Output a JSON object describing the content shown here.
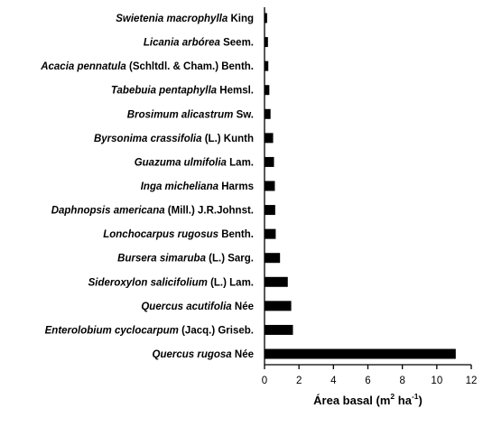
{
  "chart_data": {
    "type": "bar",
    "orientation": "horizontal",
    "categories": [
      {
        "italic": "Swietenia macrophylla",
        "author": " King",
        "value": 0.15
      },
      {
        "italic": "Licania arbórea",
        "author": " Seem.",
        "value": 0.2
      },
      {
        "italic": "Acacia pennatula",
        "author": " (Schltdl. & Cham.) Benth.",
        "value": 0.22
      },
      {
        "italic": "Tabebuia pentaphylla",
        "author": " Hemsl.",
        "value": 0.28
      },
      {
        "italic": "Brosimum alicastrum",
        "author": " Sw.",
        "value": 0.35
      },
      {
        "italic": "Byrsonima crassifolia",
        "author": " (L.) Kunth",
        "value": 0.5
      },
      {
        "italic": "Guazuma ulmifolia",
        "author": " Lam.",
        "value": 0.55
      },
      {
        "italic": "Inga micheliana",
        "author": " Harms",
        "value": 0.6
      },
      {
        "italic": "Daphnopsis americana",
        "author": " (Mill.) J.R.Johnst.",
        "value": 0.62
      },
      {
        "italic": "Lonchocarpus rugosus",
        "author": " Benth.",
        "value": 0.65
      },
      {
        "italic": "Bursera simaruba",
        "author": " (L.) Sarg.",
        "value": 0.9
      },
      {
        "italic": "Sideroxylon salicifolium",
        "author": " (L.) Lam.",
        "value": 1.35
      },
      {
        "italic": "Quercus acutifolia",
        "author": " Née",
        "value": 1.55
      },
      {
        "italic": "Enterolobium cyclocarpum",
        "author": " (Jacq.) Griseb.",
        "value": 1.65
      },
      {
        "italic": "Quercus rugosa",
        "author": " Née",
        "value": 11.1
      }
    ],
    "xlabel": "Área basal (m",
    "xlabel_sup1": "2",
    "xlabel_mid": " ha",
    "xlabel_sup2": "-1",
    "xlabel_end": ")",
    "xlim": [
      0,
      12
    ],
    "xticks": [
      0,
      2,
      4,
      6,
      8,
      10,
      12
    ],
    "bar_color": "#000000",
    "grid": false,
    "legend": "none"
  }
}
